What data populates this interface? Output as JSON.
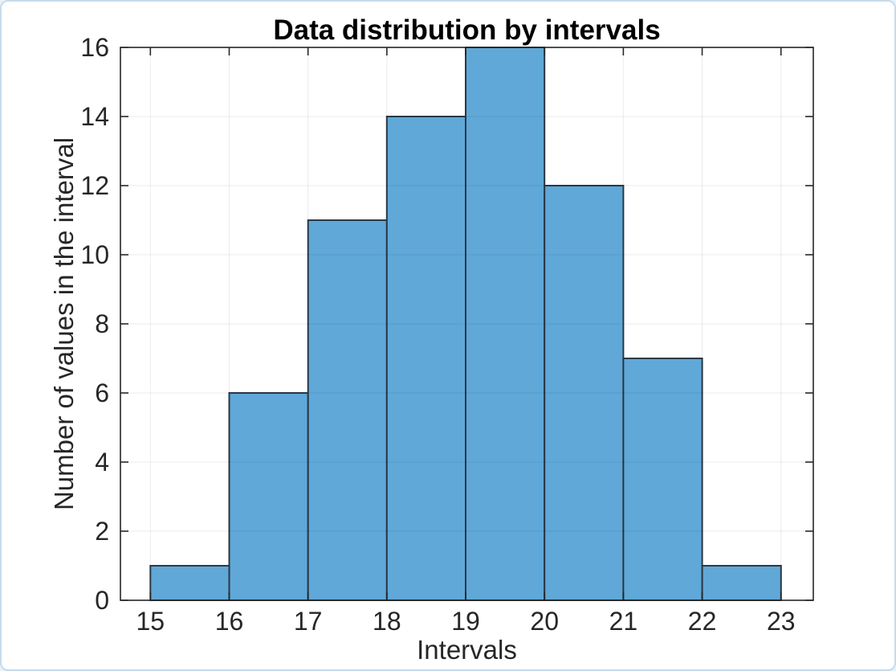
{
  "window": {
    "background": "#ffffff",
    "border_color": "#c7daec",
    "outer_background": "#e9f2f9"
  },
  "chart_data": {
    "type": "histogram",
    "title": "Data distribution by intervals",
    "xlabel": "Intervals",
    "ylabel": "Number of values in the interval",
    "bin_edges": [
      15,
      16,
      17,
      18,
      19,
      20,
      21,
      22,
      23
    ],
    "counts": [
      1,
      6,
      11,
      14,
      16,
      12,
      7,
      1
    ],
    "xticks": [
      15,
      16,
      17,
      18,
      19,
      20,
      21,
      22,
      23
    ],
    "yticks": [
      0,
      2,
      4,
      6,
      8,
      10,
      12,
      14,
      16
    ],
    "xlim": [
      14.62,
      23.41
    ],
    "ylim": [
      0,
      16
    ],
    "grid": true,
    "box": true,
    "colors": {
      "bar_fill": "#5fa8d8",
      "bar_edge": "#2b3a48",
      "axis": "#262626",
      "grid_line": "rgba(0,0,0,0.08)",
      "tick_text": "#262626",
      "title_text": "#000000"
    }
  }
}
